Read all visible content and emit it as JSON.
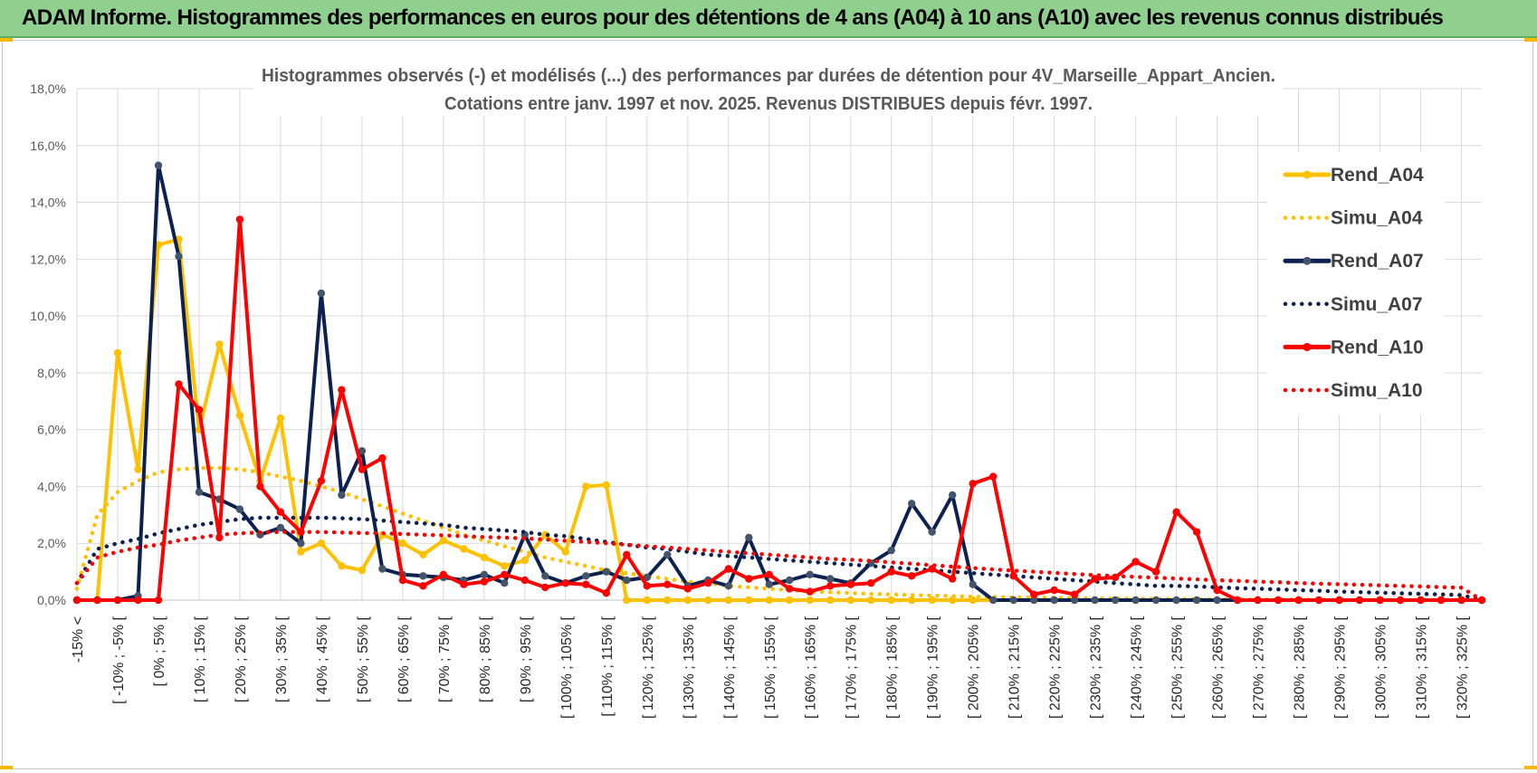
{
  "header": {
    "title": "ADAM Informe. Histogrammes des performances en euros pour des détentions de 4 ans (A04) à 10 ans (A10) avec les revenus connus distribués"
  },
  "chart_data": {
    "type": "line",
    "title": "Histogrammes observés (-) et modélisés (...) des performances par durées de détention pour 4V_Marseille_Appart_Ancien.",
    "subtitle": "Cotations entre janv. 1997 et nov. 2025. Revenus DISTRIBUES depuis févr. 1997.",
    "y_ticks": [
      "0,0%",
      "2,0%",
      "4,0%",
      "6,0%",
      "8,0%",
      "10,0%",
      "12,0%",
      "14,0%",
      "16,0%",
      "18,0%"
    ],
    "ylim": [
      0,
      18
    ],
    "x_tick_labels": [
      "-15% <",
      "[ -10% ; -5% [",
      "[ 0% ; 5% [",
      "[ 10% ; 15% [",
      "[ 20% ; 25% [",
      "[ 30% ; 35% [",
      "[ 40% ; 45% [",
      "[ 50% ; 55% [",
      "[ 60% ; 65% [",
      "[ 70% ; 75% [",
      "[ 80% ; 85% [",
      "[ 90% ; 95% [",
      "[ 100% ; 105% [",
      "[ 110% ; 115% [",
      "[ 120% ; 125% [",
      "[ 130% ; 135% [",
      "[ 140% ; 145% [",
      "[ 150% ; 155% [",
      "[ 160% ; 165% [",
      "[ 170% ; 175% [",
      "[ 180% ; 185% [",
      "[ 190% ; 195% [",
      "[ 200% ; 205% [",
      "[ 210% ; 215% [",
      "[ 220% ; 225% [",
      "[ 230% ; 235% [",
      "[ 240% ; 245% [",
      "[ 250% ; 255% [",
      "[ 260% ; 265% [",
      "[ 270% ; 275% [",
      "[ 280% ; 285% [",
      "[ 290% ; 295% [",
      "[ 300% ; 305% [",
      "[ 310% ; 315% [",
      "[ 320% ; 325% ["
    ],
    "n_points": 70,
    "series": [
      {
        "name": "Rend_A04",
        "style": "solid",
        "color": "#ffc000",
        "values": [
          0,
          0,
          8.7,
          4.6,
          12.5,
          12.7,
          6.0,
          9.0,
          6.5,
          4.2,
          6.4,
          1.7,
          2.0,
          1.2,
          1.05,
          2.3,
          2.0,
          1.6,
          2.1,
          1.8,
          1.5,
          1.2,
          1.4,
          2.3,
          1.7,
          4.0,
          4.05,
          0,
          0,
          0,
          0,
          0,
          0,
          0,
          0,
          0,
          0,
          0,
          0,
          0,
          0,
          0,
          0,
          0,
          0,
          0,
          0,
          0,
          0,
          0,
          0,
          0,
          0,
          0,
          0,
          0,
          0,
          0,
          0,
          0,
          0,
          0,
          0,
          0,
          0,
          0,
          0,
          0,
          0,
          0
        ]
      },
      {
        "name": "Simu_A04",
        "style": "dotted",
        "color": "#ffc000",
        "values": [
          0.4,
          3.0,
          3.8,
          4.2,
          4.5,
          4.6,
          4.65,
          4.65,
          4.6,
          4.5,
          4.35,
          4.2,
          4.0,
          3.8,
          3.55,
          3.3,
          3.05,
          2.8,
          2.55,
          2.3,
          2.1,
          1.9,
          1.7,
          1.5,
          1.35,
          1.2,
          1.05,
          0.95,
          0.85,
          0.75,
          0.65,
          0.6,
          0.5,
          0.45,
          0.4,
          0.35,
          0.3,
          0.28,
          0.25,
          0.22,
          0.2,
          0.18,
          0.16,
          0.14,
          0.12,
          0.11,
          0.1,
          0.09,
          0.08,
          0.07,
          0.06,
          0.05,
          0.05,
          0.04,
          0.04,
          0.03,
          0.03,
          0.03,
          0.02,
          0.02,
          0.02,
          0.02,
          0.01,
          0.01,
          0.01,
          0.01,
          0.01,
          0.01,
          0.01,
          0
        ]
      },
      {
        "name": "Rend_A07",
        "style": "solid",
        "color": "#0d2151",
        "values": [
          0,
          0,
          0,
          0.15,
          15.3,
          12.1,
          3.8,
          3.55,
          3.2,
          2.3,
          2.55,
          2.0,
          10.8,
          3.7,
          5.25,
          1.1,
          0.9,
          0.85,
          0.8,
          0.7,
          0.9,
          0.6,
          2.3,
          0.85,
          0.6,
          0.85,
          1.0,
          0.7,
          0.8,
          1.6,
          0.5,
          0.7,
          0.5,
          2.2,
          0.55,
          0.7,
          0.9,
          0.75,
          0.6,
          1.3,
          1.75,
          3.4,
          2.4,
          3.7,
          0.55,
          0,
          0,
          0,
          0,
          0,
          0,
          0,
          0,
          0,
          0,
          0,
          0,
          0,
          0,
          0,
          0,
          0,
          0,
          0,
          0,
          0,
          0,
          0,
          0,
          0
        ]
      },
      {
        "name": "Simu_A07",
        "style": "dotted",
        "color": "#0d2151",
        "values": [
          0.6,
          1.8,
          2.0,
          2.15,
          2.35,
          2.5,
          2.65,
          2.75,
          2.85,
          2.9,
          2.9,
          2.9,
          2.9,
          2.88,
          2.85,
          2.8,
          2.75,
          2.7,
          2.65,
          2.55,
          2.5,
          2.45,
          2.4,
          2.3,
          2.25,
          2.15,
          2.05,
          1.95,
          1.85,
          1.8,
          1.7,
          1.6,
          1.55,
          1.5,
          1.45,
          1.4,
          1.35,
          1.3,
          1.25,
          1.2,
          1.15,
          1.1,
          1.05,
          1.0,
          0.95,
          0.9,
          0.85,
          0.8,
          0.75,
          0.7,
          0.65,
          0.6,
          0.55,
          0.5,
          0.5,
          0.48,
          0.45,
          0.42,
          0.4,
          0.38,
          0.35,
          0.33,
          0.3,
          0.28,
          0.26,
          0.24,
          0.22,
          0.2,
          0.18,
          0
        ]
      },
      {
        "name": "Rend_A10",
        "style": "solid",
        "color": "#ff0000",
        "values": [
          0,
          0,
          0,
          0,
          0,
          7.6,
          6.7,
          2.2,
          13.4,
          4.0,
          3.1,
          2.4,
          4.2,
          7.4,
          4.6,
          5.0,
          0.7,
          0.5,
          0.9,
          0.55,
          0.65,
          0.9,
          0.7,
          0.45,
          0.6,
          0.55,
          0.25,
          1.6,
          0.5,
          0.55,
          0.4,
          0.6,
          1.1,
          0.75,
          0.9,
          0.4,
          0.3,
          0.5,
          0.55,
          0.6,
          1.0,
          0.85,
          1.1,
          0.75,
          4.1,
          4.35,
          0.85,
          0.2,
          0.35,
          0.2,
          0.75,
          0.8,
          1.35,
          1.0,
          3.1,
          2.4,
          0.35,
          0,
          0,
          0,
          0,
          0,
          0,
          0,
          0,
          0,
          0,
          0,
          0,
          0
        ]
      },
      {
        "name": "Simu_A10",
        "style": "dotted",
        "color": "#ff0000",
        "values": [
          0.6,
          1.5,
          1.7,
          1.85,
          1.95,
          2.1,
          2.2,
          2.3,
          2.35,
          2.38,
          2.4,
          2.4,
          2.4,
          2.38,
          2.36,
          2.35,
          2.33,
          2.3,
          2.28,
          2.25,
          2.22,
          2.2,
          2.17,
          2.13,
          2.09,
          2.05,
          2.0,
          1.95,
          1.9,
          1.85,
          1.8,
          1.75,
          1.7,
          1.65,
          1.6,
          1.55,
          1.5,
          1.45,
          1.42,
          1.38,
          1.33,
          1.28,
          1.23,
          1.18,
          1.13,
          1.08,
          1.04,
          1.0,
          0.96,
          0.92,
          0.88,
          0.85,
          0.82,
          0.79,
          0.76,
          0.73,
          0.7,
          0.68,
          0.65,
          0.63,
          0.6,
          0.58,
          0.56,
          0.54,
          0.52,
          0.5,
          0.48,
          0.46,
          0.44,
          0
        ]
      }
    ]
  }
}
